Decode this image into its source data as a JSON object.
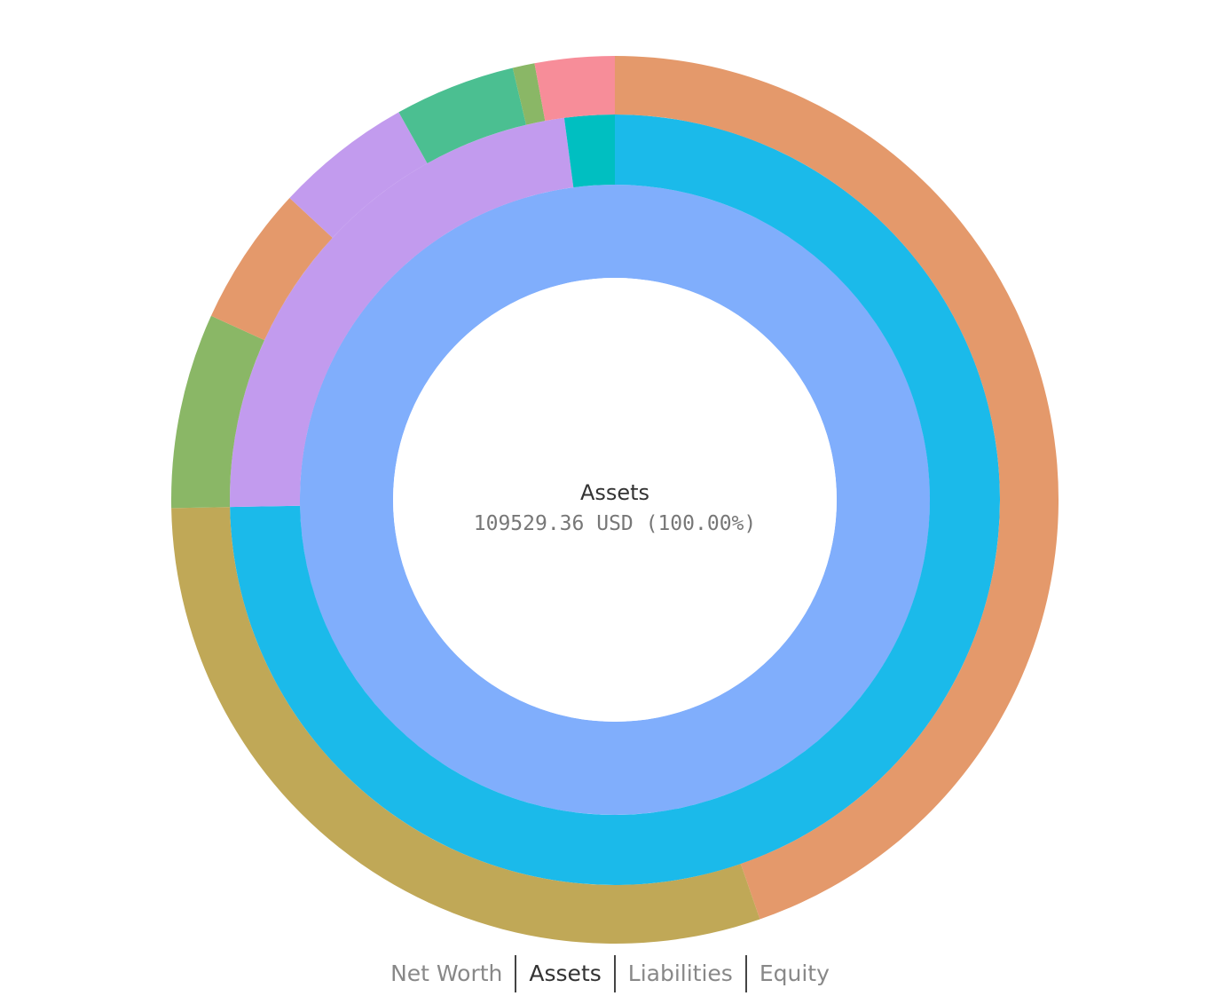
{
  "chart_data": {
    "type": "sunburst",
    "center": {
      "title": "Assets",
      "value": "109529.36 USD (100.00%)"
    },
    "total": 109529.36,
    "rings": [
      [
        {
          "name": "",
          "start": 0.0,
          "end": 1.0,
          "color": "#80AEFC"
        }
      ],
      [
        {
          "name": "",
          "start": 0.0,
          "end": 0.747,
          "color": "#1BBAEA"
        },
        {
          "name": "",
          "start": 0.747,
          "end": 0.979,
          "color": "#C29BEE"
        },
        {
          "name": "",
          "start": 0.979,
          "end": 1.0,
          "color": "#00BFC1"
        }
      ],
      [
        {
          "name": "",
          "start": 0.0,
          "end": 0.447,
          "color": "#E4996B"
        },
        {
          "name": "",
          "start": 0.447,
          "end": 0.747,
          "color": "#C0A857"
        },
        {
          "name": "",
          "start": 0.747,
          "end": 0.818,
          "color": "#8AB766"
        },
        {
          "name": "",
          "start": 0.818,
          "end": 0.869,
          "color": "#E4996B"
        },
        {
          "name": "",
          "start": 0.869,
          "end": 0.919,
          "color": "#C29BEE"
        },
        {
          "name": "",
          "start": 0.919,
          "end": 0.963,
          "color": "#4BBF91"
        },
        {
          "name": "",
          "start": 0.963,
          "end": 0.971,
          "color": "#8AB766"
        },
        {
          "name": "",
          "start": 0.971,
          "end": 1.0,
          "color": "#F78D99"
        }
      ]
    ]
  },
  "tabs": {
    "items": [
      {
        "label": "Net Worth",
        "active": false
      },
      {
        "label": "Assets",
        "active": true
      },
      {
        "label": "Liabilities",
        "active": false
      },
      {
        "label": "Equity",
        "active": false
      }
    ]
  }
}
